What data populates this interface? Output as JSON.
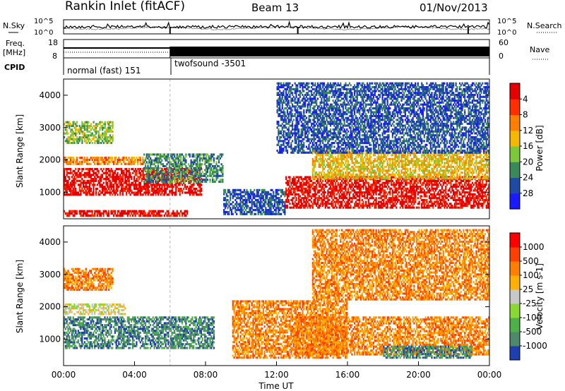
{
  "header": {
    "title": "Rankin Inlet (fitACF)",
    "beam": "Beam 13",
    "date": "01/Nov/2013"
  },
  "strip_panels": {
    "nsky_label": "N.Sky",
    "nsearch_label": "N.Search",
    "noise_ticks": [
      "10^5",
      "10^0"
    ],
    "freq_label_top": "Freq.",
    "freq_label_unit": "[MHz]",
    "freq_ticks": [
      "18",
      "8"
    ],
    "nave_label": "Nave",
    "nave_ticks": [
      "60",
      "0"
    ],
    "cpid_label": "CPID",
    "cpid_segments": [
      {
        "name": "normal (fast) 151",
        "start_hour": 0,
        "end_hour": 6.0
      },
      {
        "name": "twofsound -3501",
        "start_hour": 6.0,
        "end_hour": 24
      }
    ],
    "freq_mode_change_hour": 6.0,
    "marker_hours": [
      6.0,
      13.2,
      22.8
    ]
  },
  "chart_data": [
    {
      "type": "heatmap",
      "name": "power",
      "ylabel": "Slant Range [km]",
      "xlabel": "",
      "yticks": [
        "1000",
        "2000",
        "3000",
        "4000"
      ],
      "ylim": [
        180,
        4500
      ],
      "xlim": [
        0,
        24
      ],
      "colorbar": {
        "label": "Power [dB]",
        "ticks": [
          "4",
          "8",
          "12",
          "16",
          "20",
          "24",
          "28"
        ],
        "colors": [
          "#1a1aff",
          "#1f4ba6",
          "#3a8a58",
          "#7dc83a",
          "#f5b800",
          "#ff8000",
          "#ff3000",
          "#e60000"
        ]
      },
      "scatter_regions": [
        {
          "t0": 0.0,
          "t1": 7.8,
          "r0": 900,
          "r1": 1750,
          "cat": 7
        },
        {
          "t0": 0.0,
          "t1": 4.5,
          "r0": 1850,
          "r1": 2100,
          "cat": 5
        },
        {
          "t0": 0.0,
          "t1": 2.8,
          "r0": 2500,
          "r1": 3200,
          "cat": 3
        },
        {
          "t0": 0.0,
          "t1": 7.0,
          "r0": 250,
          "r1": 450,
          "cat": 7
        },
        {
          "t0": 4.5,
          "t1": 9.0,
          "r0": 1300,
          "r1": 2200,
          "cat": 2
        },
        {
          "t0": 9.0,
          "t1": 12.5,
          "r0": 300,
          "r1": 1100,
          "cat": 1
        },
        {
          "t0": 12.5,
          "t1": 24.0,
          "r0": 500,
          "r1": 1500,
          "cat": 7
        },
        {
          "t0": 14.0,
          "t1": 24.0,
          "r0": 1400,
          "r1": 2300,
          "cat": 4
        },
        {
          "t0": 12.0,
          "t1": 24.0,
          "r0": 2200,
          "r1": 4400,
          "cat": 1
        }
      ]
    },
    {
      "type": "heatmap",
      "name": "velocity",
      "ylabel": "Slant Range [km]",
      "xlabel": "Time UT",
      "xticks": [
        "00:00",
        "04:00",
        "08:00",
        "12:00",
        "16:00",
        "20:00",
        "00:00"
      ],
      "yticks": [
        "1000",
        "2000",
        "3000",
        "4000"
      ],
      "ylim": [
        180,
        4500
      ],
      "xlim": [
        0,
        24
      ],
      "colorbar": {
        "label": "Velocity [m s-1]",
        "ticks": [
          "1000",
          "500",
          "100",
          "25",
          "-25",
          "-100",
          "-500",
          "-1000"
        ],
        "colors": [
          "#1f3fb0",
          "#4d8a6a",
          "#4fb04a",
          "#8ad832",
          "#c8c8c8",
          "#ffb000",
          "#ff8000",
          "#ff4000",
          "#ff0000"
        ]
      },
      "scatter_regions": [
        {
          "t0": 0.0,
          "t1": 8.5,
          "r0": 700,
          "r1": 1700,
          "cat": 1
        },
        {
          "t0": 0.0,
          "t1": 3.5,
          "r0": 1750,
          "r1": 2100,
          "cat": 4
        },
        {
          "t0": 0.0,
          "t1": 2.8,
          "r0": 2500,
          "r1": 3200,
          "cat": 6
        },
        {
          "t0": 9.5,
          "t1": 16.0,
          "r0": 400,
          "r1": 2200,
          "cat": 6
        },
        {
          "t0": 13.0,
          "t1": 24.0,
          "r0": 500,
          "r1": 1700,
          "cat": 6
        },
        {
          "t0": 18.0,
          "t1": 23.0,
          "r0": 400,
          "r1": 800,
          "cat": 1
        },
        {
          "t0": 14.0,
          "t1": 24.0,
          "r0": 2200,
          "r1": 4400,
          "cat": 6
        }
      ]
    }
  ]
}
